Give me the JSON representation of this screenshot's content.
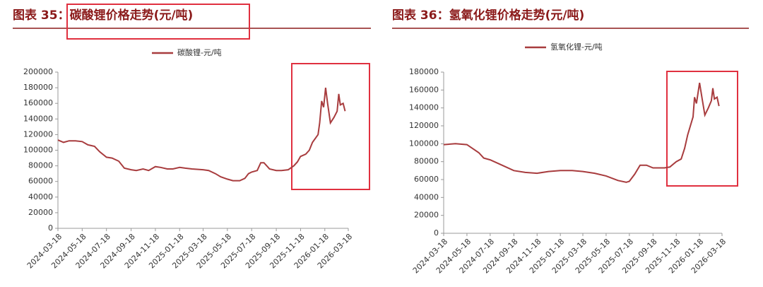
{
  "chart_data": [
    {
      "type": "line",
      "title": "图表 35：碳酸锂价格走势(元/吨)",
      "x": [
        "2024-03-18",
        "2024-04-01",
        "2024-04-15",
        "2024-05-01",
        "2024-05-18",
        "2024-06-01",
        "2024-06-18",
        "2024-07-01",
        "2024-07-18",
        "2024-08-01",
        "2024-08-18",
        "2024-09-01",
        "2024-09-18",
        "2024-10-01",
        "2024-10-18",
        "2024-11-01",
        "2024-11-18",
        "2024-12-01",
        "2024-12-18",
        "2025-01-01",
        "2025-01-18",
        "2025-02-01",
        "2025-02-18",
        "2025-03-18",
        "2025-04-01",
        "2025-04-18",
        "2025-05-01",
        "2025-05-18",
        "2025-06-01",
        "2025-06-18",
        "2025-07-01",
        "2025-07-10",
        "2025-07-18",
        "2025-08-01",
        "2025-08-10",
        "2025-08-18",
        "2025-09-01",
        "2025-09-18",
        "2025-10-01",
        "2025-10-18",
        "2025-11-01",
        "2025-11-10",
        "2025-11-18",
        "2025-12-01",
        "2025-12-10",
        "2025-12-18",
        "2026-01-01",
        "2026-01-05",
        "2026-01-10",
        "2026-01-15",
        "2026-01-20",
        "2026-01-25",
        "2026-02-01",
        "2026-02-10",
        "2026-02-18",
        "2026-02-22",
        "2026-02-26",
        "2026-03-05",
        "2026-03-10"
      ],
      "series": [
        {
          "name": "碳酸锂-元/吨",
          "color": "#a83c3e",
          "values": [
            113000,
            110000,
            112000,
            112000,
            111000,
            107000,
            105000,
            98000,
            91000,
            90000,
            86000,
            77000,
            75000,
            74000,
            76000,
            74000,
            79000,
            78000,
            76000,
            76000,
            78000,
            77000,
            76000,
            75000,
            74000,
            70000,
            66000,
            63000,
            61000,
            61000,
            64000,
            70000,
            72000,
            74000,
            84000,
            84000,
            76000,
            74000,
            74000,
            75000,
            80000,
            85000,
            92000,
            95000,
            100000,
            110000,
            120000,
            135000,
            163000,
            155000,
            180000,
            160000,
            135000,
            142000,
            150000,
            172000,
            158000,
            160000,
            150000
          ]
        }
      ],
      "xlim": [
        "2024-03-18",
        "2026-03-18"
      ],
      "xticks": [
        "2024-03-18",
        "2024-05-18",
        "2024-07-18",
        "2024-09-18",
        "2024-11-18",
        "2025-01-18",
        "2025-03-18",
        "2025-05-18",
        "2025-07-18",
        "2025-09-18",
        "2025-11-18",
        "2026-01-18",
        "2026-03-18"
      ],
      "ylim": [
        0,
        200000
      ],
      "yticks": [
        0,
        20000,
        40000,
        60000,
        80000,
        100000,
        120000,
        140000,
        160000,
        180000,
        200000
      ]
    },
    {
      "type": "line",
      "title": "图表 36：氢氧化锂价格走势(元/吨)",
      "x": [
        "2024-03-18",
        "2024-04-18",
        "2024-05-18",
        "2024-06-18",
        "2024-07-01",
        "2024-07-18",
        "2024-08-18",
        "2024-09-18",
        "2024-10-18",
        "2024-11-18",
        "2024-12-18",
        "2025-01-18",
        "2025-02-18",
        "2025-03-18",
        "2025-04-18",
        "2025-05-18",
        "2025-06-18",
        "2025-07-10",
        "2025-07-18",
        "2025-08-01",
        "2025-08-15",
        "2025-09-01",
        "2025-09-18",
        "2025-10-18",
        "2025-11-01",
        "2025-11-18",
        "2025-12-01",
        "2025-12-10",
        "2025-12-18",
        "2026-01-01",
        "2026-01-05",
        "2026-01-10",
        "2026-01-18",
        "2026-01-25",
        "2026-02-01",
        "2026-02-10",
        "2026-02-18",
        "2026-02-22",
        "2026-02-26",
        "2026-03-05",
        "2026-03-10"
      ],
      "series": [
        {
          "name": "氢氧化锂-元/吨",
          "color": "#a83c3e",
          "values": [
            99000,
            100000,
            99000,
            90000,
            84000,
            82000,
            76000,
            70000,
            68000,
            67000,
            69000,
            70000,
            70000,
            69000,
            67000,
            64000,
            59000,
            57000,
            58000,
            66000,
            76000,
            76000,
            73000,
            73000,
            74000,
            80000,
            83000,
            95000,
            110000,
            130000,
            152000,
            145000,
            168000,
            150000,
            132000,
            140000,
            148000,
            162000,
            150000,
            152000,
            142000
          ]
        }
      ],
      "xlim": [
        "2024-03-18",
        "2026-03-18"
      ],
      "xticks": [
        "2024-03-18",
        "2024-05-18",
        "2024-07-18",
        "2024-09-18",
        "2024-11-18",
        "2025-01-18",
        "2025-03-18",
        "2025-05-18",
        "2025-07-18",
        "2025-09-18",
        "2025-11-18",
        "2026-01-18",
        "2026-03-18"
      ],
      "ylim": [
        0,
        180000
      ],
      "yticks": [
        0,
        20000,
        40000,
        60000,
        80000,
        100000,
        120000,
        140000,
        160000,
        180000
      ]
    }
  ]
}
